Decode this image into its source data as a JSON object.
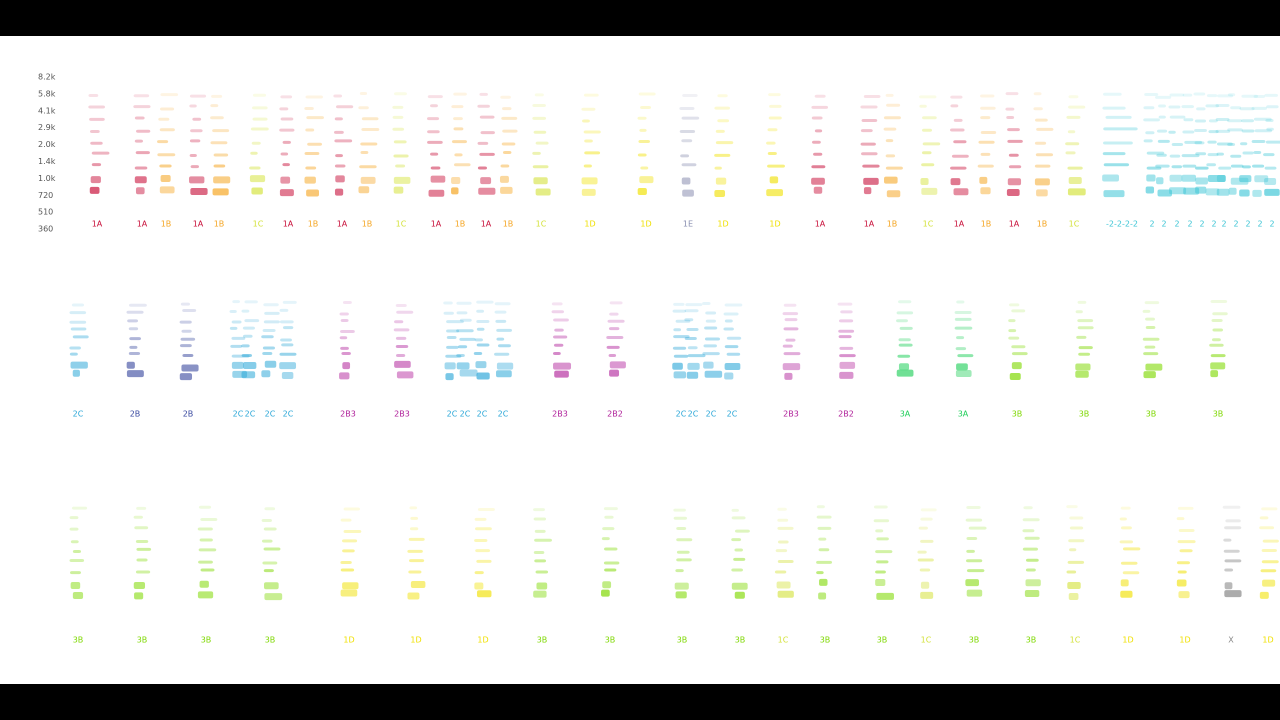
{
  "frequency_labels": [
    "8.2k",
    "5.8k",
    "4.1k",
    "2.9k",
    "2.0k",
    "1.4k",
    "1.0k",
    "720",
    "510",
    "360"
  ],
  "rows": [
    {
      "labels": [
        {
          "text": "1A",
          "color": "#c8103a"
        },
        {
          "text": "1A",
          "color": "#c8103a"
        },
        {
          "text": "1B",
          "color": "#f5a623"
        },
        {
          "text": "1A",
          "color": "#c8103a"
        },
        {
          "text": "1B",
          "color": "#f5a623"
        },
        {
          "text": "1C",
          "color": "#d4e23c"
        },
        {
          "text": "1A",
          "color": "#c8103a"
        },
        {
          "text": "1B",
          "color": "#f5a623"
        },
        {
          "text": "1A",
          "color": "#c8103a"
        },
        {
          "text": "1B",
          "color": "#f5a623"
        },
        {
          "text": "1C",
          "color": "#d4e23c"
        },
        {
          "text": "1A",
          "color": "#c8103a"
        },
        {
          "text": "1B",
          "color": "#f5a623"
        },
        {
          "text": "1A",
          "color": "#c8103a"
        },
        {
          "text": "1B",
          "color": "#f5a623"
        },
        {
          "text": "1C",
          "color": "#d4e23c"
        },
        {
          "text": "1D",
          "color": "#f0e000"
        },
        {
          "text": "1D",
          "color": "#f0e000"
        },
        {
          "text": "1E",
          "color": "#8a8fb0"
        },
        {
          "text": "1D",
          "color": "#f0e000"
        },
        {
          "text": "1D",
          "color": "#f0e000"
        },
        {
          "text": "1A",
          "color": "#c8103a"
        },
        {
          "text": "1A",
          "color": "#c8103a"
        },
        {
          "text": "1B",
          "color": "#f5a623"
        },
        {
          "text": "1C",
          "color": "#d4e23c"
        },
        {
          "text": "1A",
          "color": "#c8103a"
        },
        {
          "text": "1B",
          "color": "#f5a623"
        },
        {
          "text": "1A",
          "color": "#c8103a"
        },
        {
          "text": "1B",
          "color": "#f5a623"
        },
        {
          "text": "1C",
          "color": "#d4e23c"
        },
        {
          "text": "-2-2-2-2",
          "color": "#3fc6d6"
        },
        {
          "text": "2",
          "color": "#3fc6d6"
        },
        {
          "text": "2",
          "color": "#3fc6d6"
        },
        {
          "text": "2",
          "color": "#3fc6d6"
        },
        {
          "text": "2",
          "color": "#3fc6d6"
        },
        {
          "text": "2",
          "color": "#3fc6d6"
        },
        {
          "text": "2",
          "color": "#3fc6d6"
        },
        {
          "text": "2",
          "color": "#3fc6d6"
        },
        {
          "text": "2",
          "color": "#3fc6d6"
        },
        {
          "text": "2",
          "color": "#3fc6d6"
        },
        {
          "text": "2",
          "color": "#3fc6d6"
        },
        {
          "text": "2",
          "color": "#3fc6d6"
        }
      ]
    },
    {
      "labels": [
        {
          "text": "2C",
          "color": "#2ea8d8"
        },
        {
          "text": "2B",
          "color": "#3a4aa0"
        },
        {
          "text": "2B",
          "color": "#3a4aa0"
        },
        {
          "text": "2C",
          "color": "#2ea8d8"
        },
        {
          "text": "2C",
          "color": "#2ea8d8"
        },
        {
          "text": "2C",
          "color": "#2ea8d8"
        },
        {
          "text": "2C",
          "color": "#2ea8d8"
        },
        {
          "text": "2B3",
          "color": "#b0209a"
        },
        {
          "text": "2B3",
          "color": "#b0209a"
        },
        {
          "text": "2C",
          "color": "#2ea8d8"
        },
        {
          "text": "2C",
          "color": "#2ea8d8"
        },
        {
          "text": "2C",
          "color": "#2ea8d8"
        },
        {
          "text": "2C",
          "color": "#2ea8d8"
        },
        {
          "text": "2B3",
          "color": "#b0209a"
        },
        {
          "text": "2B2",
          "color": "#b0209a"
        },
        {
          "text": "2C",
          "color": "#2ea8d8"
        },
        {
          "text": "2C",
          "color": "#2ea8d8"
        },
        {
          "text": "2C",
          "color": "#2ea8d8"
        },
        {
          "text": "2C",
          "color": "#2ea8d8"
        },
        {
          "text": "2B3",
          "color": "#b0209a"
        },
        {
          "text": "2B2",
          "color": "#b0209a"
        },
        {
          "text": "3A",
          "color": "#1fcf5a"
        },
        {
          "text": "3A",
          "color": "#1fcf5a"
        },
        {
          "text": "3B",
          "color": "#7ed800"
        },
        {
          "text": "3B",
          "color": "#7ed800"
        },
        {
          "text": "3B",
          "color": "#7ed800"
        },
        {
          "text": "3B",
          "color": "#7ed800"
        }
      ]
    },
    {
      "labels": [
        {
          "text": "3B",
          "color": "#7ed800"
        },
        {
          "text": "3B",
          "color": "#7ed800"
        },
        {
          "text": "3B",
          "color": "#7ed800"
        },
        {
          "text": "3B",
          "color": "#7ed800"
        },
        {
          "text": "1D",
          "color": "#f0e000"
        },
        {
          "text": "1D",
          "color": "#f0e000"
        },
        {
          "text": "1D",
          "color": "#f0e000"
        },
        {
          "text": "3B",
          "color": "#7ed800"
        },
        {
          "text": "3B",
          "color": "#7ed800"
        },
        {
          "text": "3B",
          "color": "#7ed800"
        },
        {
          "text": "3B",
          "color": "#7ed800"
        },
        {
          "text": "1C",
          "color": "#d4e23c"
        },
        {
          "text": "3B",
          "color": "#7ed800"
        },
        {
          "text": "3B",
          "color": "#7ed800"
        },
        {
          "text": "1C",
          "color": "#d4e23c"
        },
        {
          "text": "3B",
          "color": "#7ed800"
        },
        {
          "text": "3B",
          "color": "#7ed800"
        },
        {
          "text": "1C",
          "color": "#d4e23c"
        },
        {
          "text": "1D",
          "color": "#f0e000"
        },
        {
          "text": "1D",
          "color": "#f0e000"
        },
        {
          "text": "X",
          "color": "#888888"
        },
        {
          "text": "1D",
          "color": "#f0e000"
        }
      ]
    }
  ]
}
